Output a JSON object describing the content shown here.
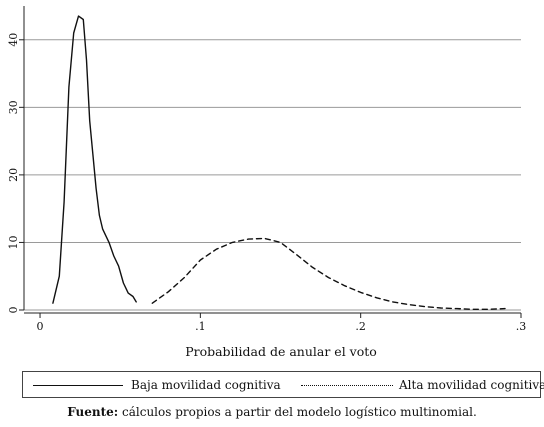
{
  "chart_data": {
    "type": "line",
    "xlabel": "Probabilidad de anular el voto",
    "ylabel": "",
    "xlim": [
      -0.01,
      0.3
    ],
    "ylim": [
      0,
      45
    ],
    "xticks": [
      0,
      0.1,
      0.2,
      0.3
    ],
    "xtick_labels": [
      "0",
      ".1",
      ".2",
      ".3"
    ],
    "yticks": [
      0,
      10,
      20,
      30,
      40
    ],
    "ytick_labels": [
      "0",
      "10",
      "20",
      "30",
      "40"
    ],
    "grid": "horizontal",
    "legend_position": "bottom",
    "series": [
      {
        "name": "Baja movilidad cognitiva",
        "style": "solid",
        "x": [
          0.008,
          0.012,
          0.015,
          0.018,
          0.021,
          0.024,
          0.027,
          0.029,
          0.031,
          0.033,
          0.035,
          0.037,
          0.039,
          0.041,
          0.043,
          0.046,
          0.049,
          0.052,
          0.055,
          0.058,
          0.06
        ],
        "y": [
          1.0,
          5,
          16,
          33,
          41,
          43.5,
          43,
          37,
          28,
          23,
          18,
          14,
          12,
          11,
          10,
          8,
          6.5,
          4,
          2.5,
          2,
          1.2
        ]
      },
      {
        "name": "Alta movilidad cognitiva",
        "style": "dashed",
        "x": [
          0.07,
          0.08,
          0.09,
          0.1,
          0.11,
          0.12,
          0.13,
          0.14,
          0.15,
          0.16,
          0.17,
          0.18,
          0.19,
          0.2,
          0.21,
          0.22,
          0.23,
          0.24,
          0.25,
          0.26,
          0.27,
          0.28,
          0.29
        ],
        "y": [
          1.0,
          2.7,
          4.8,
          7.4,
          9.0,
          10.0,
          10.5,
          10.6,
          10.0,
          8.2,
          6.3,
          4.8,
          3.6,
          2.6,
          1.8,
          1.2,
          0.8,
          0.5,
          0.3,
          0.2,
          0.1,
          0.1,
          0.2
        ]
      }
    ]
  },
  "caption": {
    "label": "Fuente:",
    "text": " cálculos propios a partir del modelo logístico multinomial."
  }
}
